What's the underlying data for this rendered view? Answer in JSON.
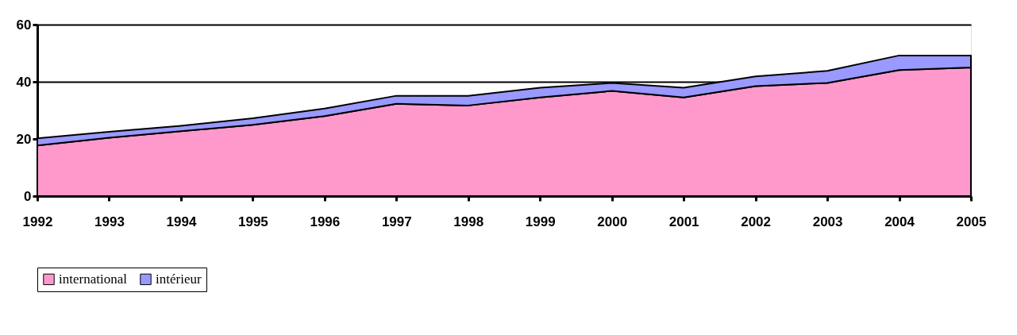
{
  "chart_data": {
    "type": "area",
    "stacked": true,
    "x": [
      1992,
      1993,
      1994,
      1995,
      1996,
      1997,
      1998,
      1999,
      2000,
      2001,
      2002,
      2003,
      2004,
      2005
    ],
    "series": [
      {
        "name": "international",
        "color": "#ff99cc",
        "values": [
          17.7,
          20.4,
          22.7,
          24.9,
          28.0,
          32.3,
          31.7,
          34.5,
          36.8,
          34.5,
          38.5,
          39.6,
          44.1,
          45.0
        ]
      },
      {
        "name": "intérieur",
        "color": "#9999ff",
        "values": [
          2.5,
          2.1,
          1.9,
          2.3,
          2.6,
          2.8,
          3.4,
          3.4,
          2.8,
          3.4,
          3.4,
          4.2,
          5.1,
          4.2
        ]
      }
    ],
    "xlim": [
      1992,
      2005
    ],
    "xticks": [
      1992,
      1993,
      1994,
      1995,
      1996,
      1997,
      1998,
      1999,
      2000,
      2001,
      2002,
      2003,
      2004,
      2005
    ],
    "ylim": [
      0,
      60
    ],
    "yticks": [
      0,
      20,
      40,
      60
    ],
    "grid": "y",
    "legend": "bottom"
  }
}
